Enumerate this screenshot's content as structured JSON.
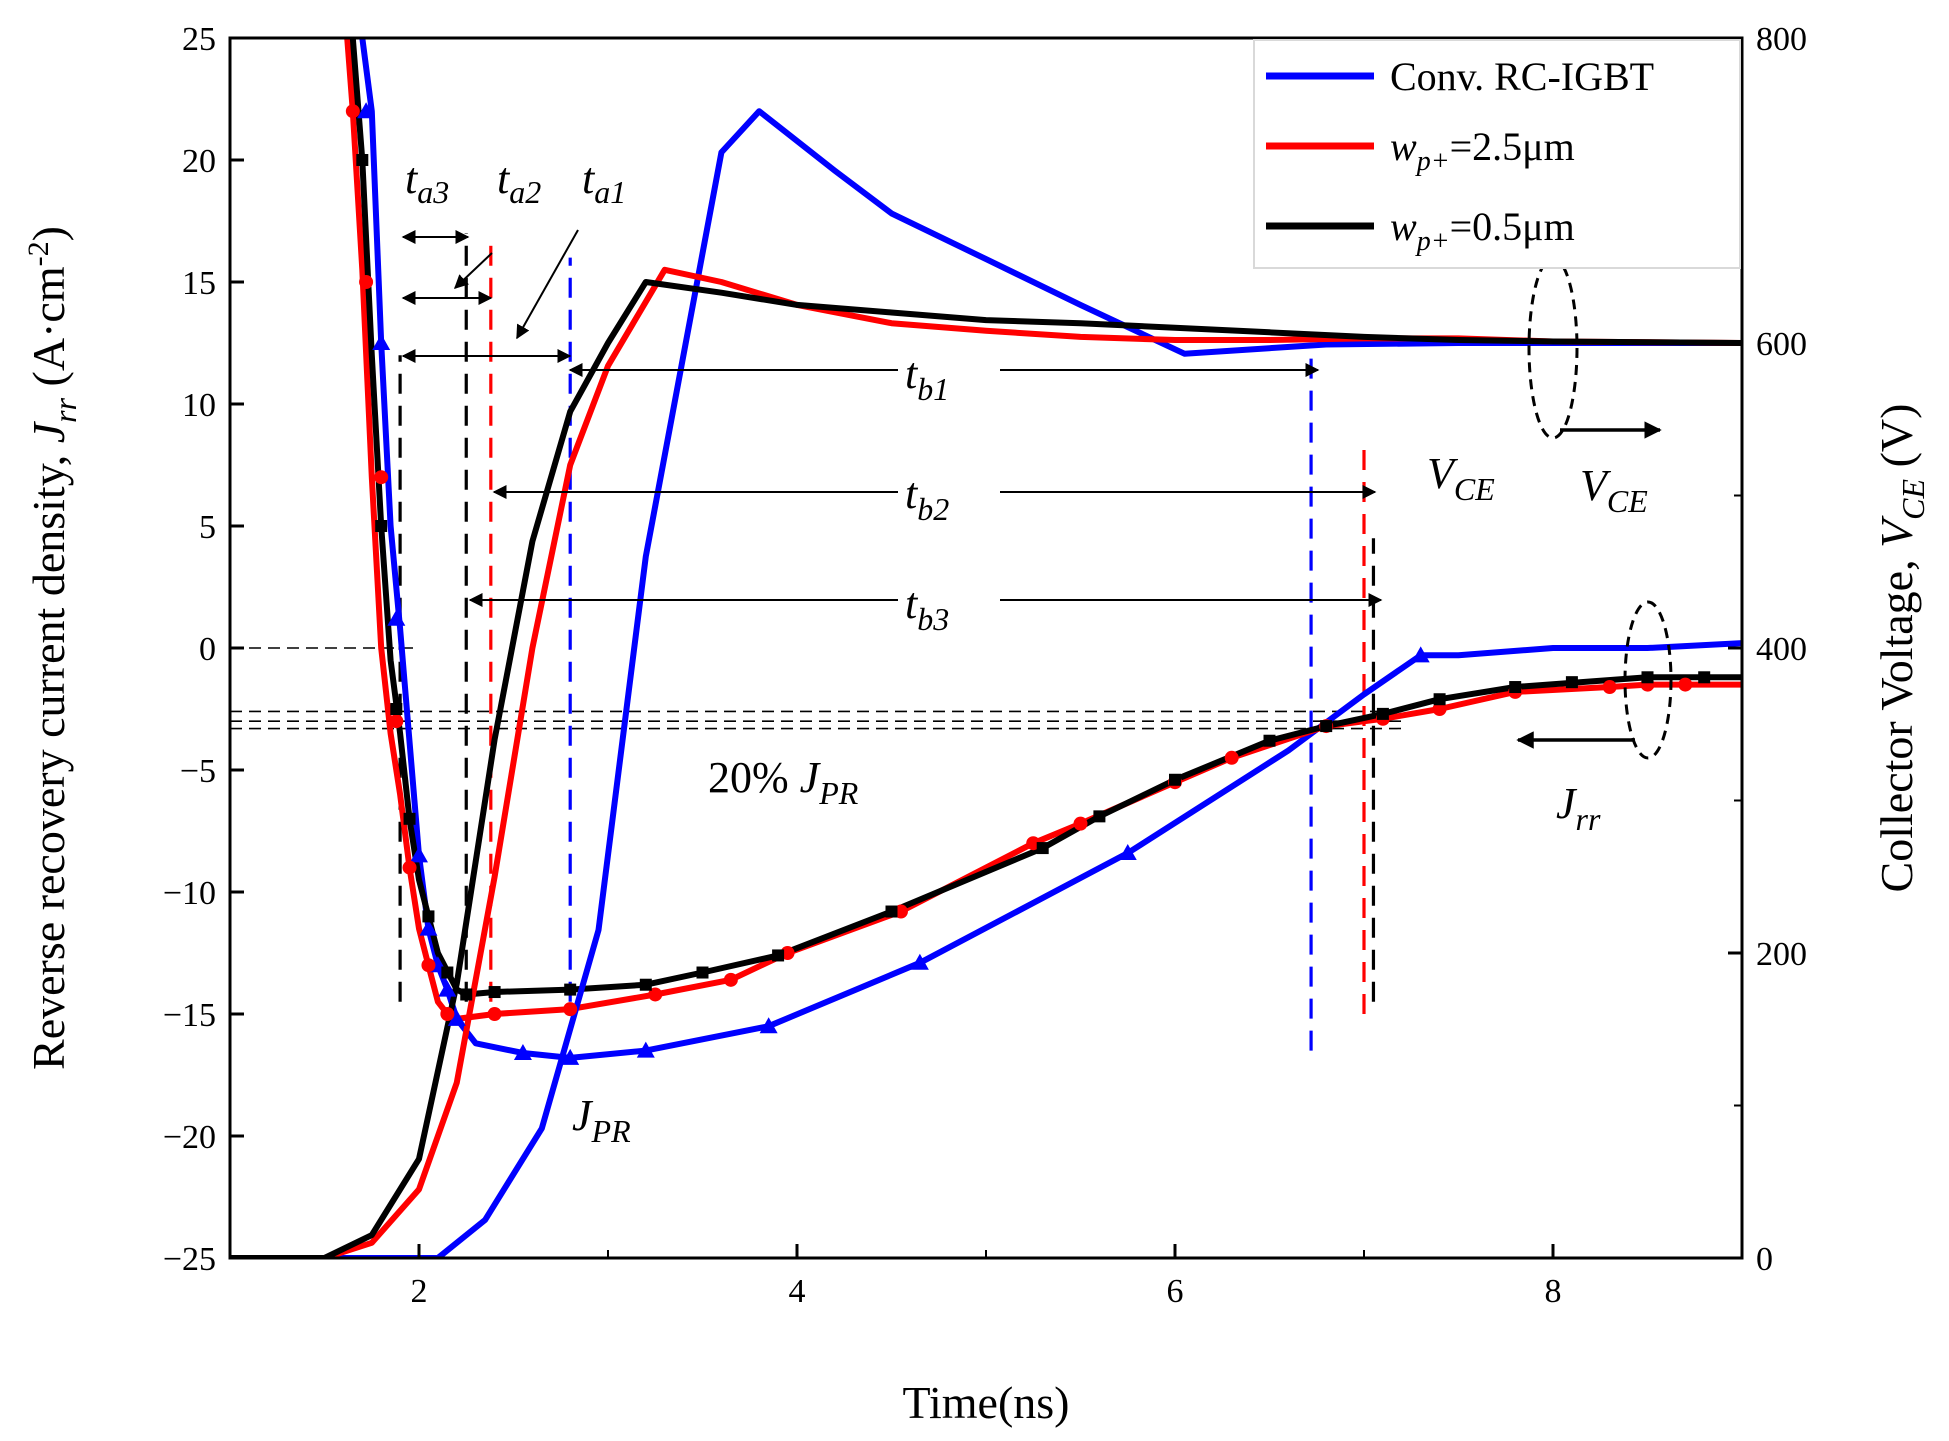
{
  "chart_data": {
    "type": "line",
    "xlabel": "Time(ns)",
    "ylabel_left": {
      "text": "Reverse recovery current density, ",
      "sym": "J",
      "sub": "rr",
      "unit_open": " (A·cm",
      "sup": "-2",
      "unit_close": ")"
    },
    "ylabel_right": {
      "text": "Collector Voltage, ",
      "sym": "V",
      "sub": "CE",
      "unit": " (V)"
    },
    "xlim": [
      1,
      9
    ],
    "ylim_left": [
      -25,
      25
    ],
    "ylim_right": [
      0,
      800
    ],
    "x_ticks": [
      2,
      4,
      6,
      8
    ],
    "x_tick_labels": [
      "2",
      "4",
      "6",
      "8"
    ],
    "y_left_ticks": [
      -25,
      -20,
      -15,
      -10,
      -5,
      0,
      5,
      10,
      15,
      20,
      25
    ],
    "y_left_tick_labels": [
      "−25",
      "−20",
      "−15",
      "−10",
      "−5",
      "0",
      "5",
      "10",
      "15",
      "20",
      "25"
    ],
    "y_right_ticks": [
      0,
      200,
      400,
      600,
      800
    ],
    "y_right_tick_labels": [
      "0",
      "200",
      "400",
      "600",
      "800"
    ],
    "legend": {
      "position": "top-right",
      "entries": [
        {
          "text": "Conv. RC-IGBT",
          "color": "#0000ff"
        },
        {
          "sym": "w",
          "sub": "p+",
          "text": "=2.5μm",
          "color": "#ff0000"
        },
        {
          "sym": "w",
          "sub": "p+",
          "text": "=0.5μm",
          "color": "#000000"
        }
      ]
    },
    "series": [
      {
        "name": "Conv. RC-IGBT current",
        "axis": "left",
        "color": "#0000ff",
        "marker": "triangle",
        "x": [
          1.7,
          1.75,
          1.8,
          1.85,
          1.9,
          2.0,
          2.05,
          2.1,
          2.15,
          2.2,
          2.3,
          2.55,
          2.8,
          3.2,
          3.85,
          4.65,
          5.75,
          6.6,
          7.0,
          7.3,
          7.5,
          8.0,
          8.5,
          9.0
        ],
        "y": [
          25,
          22,
          12.5,
          5,
          0.8,
          -8.5,
          -11.5,
          -13.0,
          -14.0,
          -15.2,
          -16.2,
          -16.6,
          -16.8,
          -16.5,
          -15.5,
          -12.9,
          -8.4,
          -4.2,
          -1.9,
          -0.3,
          -0.3,
          0.0,
          0.0,
          0.2
        ],
        "marker_x": [
          1.72,
          1.8,
          1.88,
          2.0,
          2.05,
          2.1,
          2.15,
          2.2,
          2.55,
          2.8,
          3.2,
          3.85,
          4.65,
          5.75,
          7.3
        ],
        "marker_y": [
          22.0,
          12.5,
          1.2,
          -8.5,
          -11.5,
          -13.0,
          -14.0,
          -15.2,
          -16.6,
          -16.8,
          -16.5,
          -15.5,
          -12.9,
          -8.4,
          -0.3
        ]
      },
      {
        "name": "wp+=2.5um current",
        "axis": "left",
        "color": "#ff0000",
        "marker": "circle",
        "x": [
          1.62,
          1.65,
          1.7,
          1.75,
          1.8,
          1.85,
          1.9,
          1.95,
          2.0,
          2.05,
          2.1,
          2.15,
          2.2,
          2.4,
          2.8,
          3.25,
          3.65,
          3.95,
          4.55,
          5.25,
          5.5,
          6.0,
          6.3,
          6.8,
          7.1,
          7.4,
          7.8,
          8.3,
          8.5,
          9.0
        ],
        "y": [
          25,
          22,
          15.5,
          7,
          0,
          -3.5,
          -6.0,
          -9.0,
          -11.5,
          -13.0,
          -14.5,
          -15.0,
          -15.2,
          -15.0,
          -14.8,
          -14.2,
          -13.6,
          -12.5,
          -10.8,
          -8.0,
          -7.2,
          -5.5,
          -4.5,
          -3.2,
          -2.9,
          -2.5,
          -1.8,
          -1.6,
          -1.5,
          -1.5
        ],
        "marker_x": [
          1.65,
          1.72,
          1.8,
          1.88,
          1.95,
          2.05,
          2.15,
          2.4,
          2.8,
          3.25,
          3.65,
          3.95,
          4.55,
          5.25,
          5.5,
          6.0,
          6.3,
          6.8,
          7.1,
          7.4,
          7.8,
          8.3,
          8.5,
          8.7
        ],
        "marker_y": [
          22.0,
          15.0,
          7.0,
          -3.0,
          -9.0,
          -13.0,
          -15.0,
          -15.0,
          -14.8,
          -14.2,
          -13.6,
          -12.5,
          -10.8,
          -8.0,
          -7.2,
          -5.5,
          -4.5,
          -3.2,
          -2.9,
          -2.5,
          -1.8,
          -1.6,
          -1.5,
          -1.5
        ]
      },
      {
        "name": "wp+=0.5um current",
        "axis": "left",
        "color": "#000000",
        "marker": "square",
        "x": [
          1.65,
          1.7,
          1.75,
          1.8,
          1.85,
          1.9,
          1.95,
          2.0,
          2.1,
          2.2,
          2.25,
          2.4,
          2.8,
          3.2,
          3.5,
          3.9,
          4.5,
          5.3,
          5.6,
          6.0,
          6.5,
          6.8,
          7.1,
          7.4,
          7.8,
          8.5,
          9.0
        ],
        "y": [
          25,
          20,
          12,
          5,
          -0.5,
          -3.5,
          -7.0,
          -9.5,
          -12.5,
          -14.0,
          -14.2,
          -14.1,
          -14.0,
          -13.8,
          -13.3,
          -12.6,
          -10.8,
          -8.2,
          -6.9,
          -5.4,
          -3.8,
          -3.2,
          -2.7,
          -2.1,
          -1.6,
          -1.2,
          -1.2
        ],
        "marker_x": [
          1.7,
          1.8,
          1.88,
          1.95,
          2.05,
          2.15,
          2.25,
          2.4,
          2.8,
          3.2,
          3.5,
          3.9,
          4.5,
          5.3,
          5.6,
          6.0,
          6.5,
          6.8,
          7.1,
          7.4,
          7.8,
          8.1,
          8.5,
          8.8
        ],
        "marker_y": [
          20.0,
          5.0,
          -2.5,
          -7.0,
          -11.0,
          -13.3,
          -14.2,
          -14.1,
          -14.0,
          -13.8,
          -13.3,
          -12.6,
          -10.8,
          -8.2,
          -6.9,
          -5.4,
          -3.8,
          -3.2,
          -2.7,
          -2.1,
          -1.6,
          -1.4,
          -1.2,
          -1.2
        ]
      },
      {
        "name": "Conv. RC-IGBT voltage",
        "axis": "right",
        "color": "#0000ff",
        "marker": "none",
        "x": [
          1.0,
          2.1,
          2.35,
          2.65,
          2.95,
          3.2,
          3.6,
          3.8,
          4.2,
          4.5,
          5.0,
          5.5,
          6.05,
          6.8,
          7.5,
          8.0,
          9.0
        ],
        "y": [
          0,
          0,
          25,
          85,
          215,
          460,
          725,
          752,
          713,
          685,
          655,
          625,
          593,
          599,
          600,
          600,
          600
        ]
      },
      {
        "name": "wp+=2.5um voltage",
        "axis": "right",
        "color": "#ff0000",
        "marker": "none",
        "x": [
          1.0,
          1.5,
          1.75,
          2.0,
          2.2,
          2.4,
          2.6,
          2.8,
          3.0,
          3.3,
          3.6,
          4.0,
          4.5,
          5.0,
          5.5,
          6.0,
          6.5,
          7.0,
          7.5,
          8.0,
          9.0
        ],
        "y": [
          0,
          0,
          10,
          45,
          115,
          250,
          400,
          520,
          585,
          648,
          640,
          625,
          613,
          608,
          604,
          602,
          602,
          603,
          603,
          601,
          600
        ]
      },
      {
        "name": "wp+=0.5um voltage",
        "axis": "right",
        "color": "#000000",
        "marker": "none",
        "x": [
          1.0,
          1.5,
          1.75,
          2.0,
          2.2,
          2.4,
          2.6,
          2.8,
          3.0,
          3.2,
          3.6,
          4.0,
          4.5,
          5.0,
          5.5,
          6.0,
          6.5,
          7.0,
          7.5,
          8.0,
          9.0
        ],
        "y": [
          0,
          0,
          15,
          65,
          180,
          340,
          470,
          555,
          600,
          640,
          633,
          625,
          620,
          615,
          613,
          610,
          607,
          604,
          602,
          601,
          600
        ]
      }
    ],
    "reference_lines": [
      {
        "name": "zero-level",
        "y": 0,
        "x0": 1.0,
        "x1": 2.0,
        "color": "#000000"
      },
      {
        "name": "20pct-level-1",
        "y": -2.6,
        "x0": 1.0,
        "x1": 7.2,
        "color": "#000000"
      },
      {
        "name": "20pct-level-2",
        "y": -3.0,
        "x0": 1.0,
        "x1": 7.2,
        "color": "#000000"
      },
      {
        "name": "20pct-level-3",
        "y": -3.3,
        "x0": 1.0,
        "x1": 7.2,
        "color": "#000000"
      }
    ],
    "vertical_markers": [
      {
        "name": "ta-start",
        "x": 1.9,
        "y0": -14.5,
        "y1": 12,
        "color": "#000000"
      },
      {
        "name": "ta3-end",
        "x": 2.25,
        "y0": -14.5,
        "y1": 17,
        "color": "#000000"
      },
      {
        "name": "ta2-end",
        "x": 2.38,
        "y0": -14.5,
        "y1": 16.5,
        "color": "#ff0000"
      },
      {
        "name": "ta1-end",
        "x": 2.8,
        "y0": -14.5,
        "y1": 16,
        "color": "#0000ff"
      },
      {
        "name": "tb1-end",
        "x": 6.72,
        "y0": -16.5,
        "y1": 12,
        "color": "#0000ff"
      },
      {
        "name": "tb2-end",
        "x": 7.0,
        "y0": -15.0,
        "y1": 8.5,
        "color": "#ff0000"
      },
      {
        "name": "tb3-end",
        "x": 7.05,
        "y0": -14.5,
        "y1": 4.5,
        "color": "#000000"
      }
    ],
    "annotations": [
      {
        "name": "ta3",
        "sym": "t",
        "sub": "a3"
      },
      {
        "name": "ta2",
        "sym": "t",
        "sub": "a2"
      },
      {
        "name": "ta1",
        "sym": "t",
        "sub": "a1"
      },
      {
        "name": "tb1",
        "sym": "t",
        "sub": "b1"
      },
      {
        "name": "tb2",
        "sym": "t",
        "sub": "b2"
      },
      {
        "name": "tb3",
        "sym": "t",
        "sub": "b3"
      },
      {
        "name": "vce-label",
        "sym": "V",
        "sub": "CE"
      },
      {
        "name": "vce-arrow-label",
        "sym": "V",
        "sub": "CE"
      },
      {
        "name": "jrr-arrow-label",
        "sym": "J",
        "sub": "rr"
      },
      {
        "name": "jpr-label",
        "sym": "J",
        "sub": "PR"
      },
      {
        "name": "pct-label",
        "text": "20% ",
        "sym": "J",
        "sub": "PR"
      }
    ]
  }
}
